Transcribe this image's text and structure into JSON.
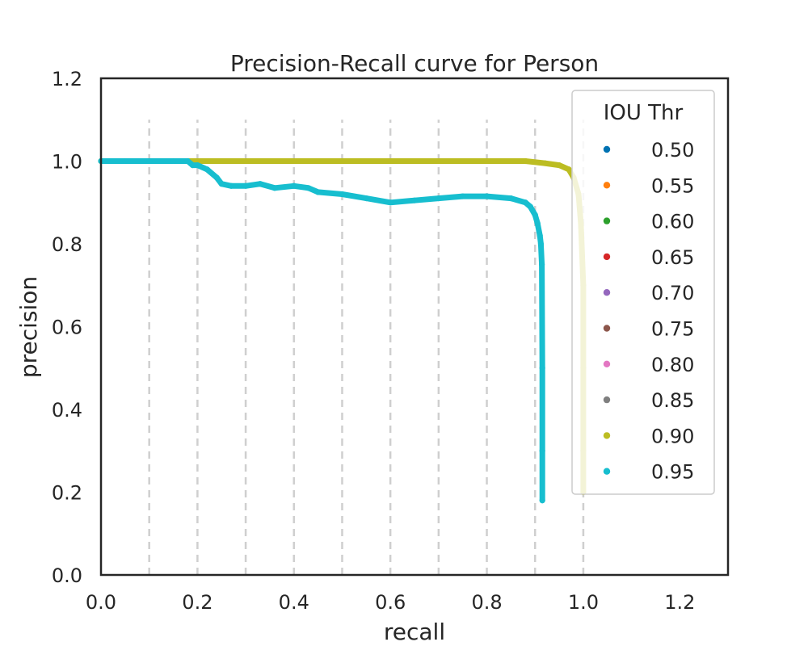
{
  "chart_data": {
    "type": "scatter",
    "title": "Precision-Recall curve for Person",
    "xlabel": "recall",
    "ylabel": "precision",
    "xlim": [
      0.0,
      1.3
    ],
    "ylim": [
      0.0,
      1.2
    ],
    "xticks": [
      "0.0",
      "0.2",
      "0.4",
      "0.6",
      "0.8",
      "1.0",
      "1.2"
    ],
    "yticks": [
      "0.0",
      "0.2",
      "0.4",
      "0.6",
      "0.8",
      "1.0",
      "1.2"
    ],
    "xtick_values": [
      0.0,
      0.2,
      0.4,
      0.6,
      0.8,
      1.0,
      1.2
    ],
    "ytick_values": [
      0.0,
      0.2,
      0.4,
      0.6,
      0.8,
      1.0,
      1.2
    ],
    "grid": "vertical-dashed",
    "gridlines_x": [
      0.1,
      0.2,
      0.3,
      0.4,
      0.5,
      0.6,
      0.7,
      0.8,
      0.9,
      1.0
    ],
    "gridline_ymax": 1.1,
    "legend_title": "IOU Thr",
    "legend_position": "top-right",
    "series": [
      {
        "name": "0.50",
        "color": "#0072b2",
        "x": [],
        "y": []
      },
      {
        "name": "0.55",
        "color": "#ff7f0e",
        "x": [],
        "y": []
      },
      {
        "name": "0.60",
        "color": "#2ca02c",
        "x": [],
        "y": []
      },
      {
        "name": "0.65",
        "color": "#d62728",
        "x": [],
        "y": []
      },
      {
        "name": "0.70",
        "color": "#9467bd",
        "x": [],
        "y": []
      },
      {
        "name": "0.75",
        "color": "#8c564b",
        "x": [],
        "y": []
      },
      {
        "name": "0.80",
        "color": "#e377c2",
        "x": [],
        "y": []
      },
      {
        "name": "0.85",
        "color": "#7f7f7f",
        "x": [],
        "y": []
      },
      {
        "name": "0.90",
        "color": "#bcbd22",
        "x": [
          0.0,
          0.1,
          0.2,
          0.3,
          0.4,
          0.5,
          0.6,
          0.7,
          0.8,
          0.88,
          0.92,
          0.95,
          0.97,
          0.98,
          0.99,
          0.995,
          1.0,
          1.0,
          1.0,
          1.0
        ],
        "y": [
          1.0,
          1.0,
          1.0,
          1.0,
          1.0,
          1.0,
          1.0,
          1.0,
          1.0,
          1.0,
          0.995,
          0.99,
          0.98,
          0.96,
          0.92,
          0.85,
          0.7,
          0.5,
          0.3,
          0.2
        ]
      },
      {
        "name": "0.95",
        "color": "#17becf",
        "x": [
          0.0,
          0.05,
          0.1,
          0.15,
          0.18,
          0.19,
          0.2,
          0.22,
          0.24,
          0.25,
          0.27,
          0.3,
          0.33,
          0.36,
          0.4,
          0.43,
          0.45,
          0.5,
          0.55,
          0.6,
          0.65,
          0.7,
          0.75,
          0.8,
          0.85,
          0.88,
          0.89,
          0.9,
          0.905,
          0.91,
          0.912,
          0.914,
          0.915,
          0.915,
          0.915
        ],
        "y": [
          1.0,
          1.0,
          1.0,
          1.0,
          1.0,
          0.99,
          0.99,
          0.98,
          0.96,
          0.945,
          0.94,
          0.94,
          0.945,
          0.935,
          0.94,
          0.935,
          0.925,
          0.92,
          0.91,
          0.9,
          0.905,
          0.91,
          0.915,
          0.915,
          0.91,
          0.9,
          0.89,
          0.87,
          0.85,
          0.82,
          0.8,
          0.75,
          0.5,
          0.3,
          0.18
        ]
      }
    ]
  }
}
